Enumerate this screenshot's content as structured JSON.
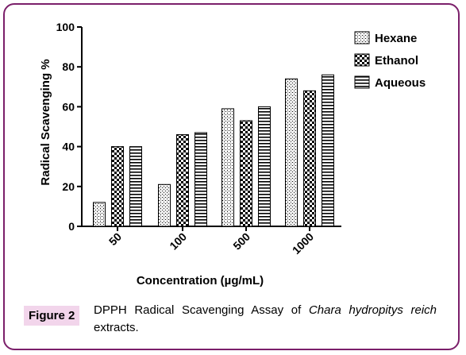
{
  "chart_data": {
    "type": "bar",
    "categories": [
      "50",
      "100",
      "500",
      "1000"
    ],
    "series": [
      {
        "name": "Hexane",
        "values": [
          12,
          21,
          59,
          74
        ]
      },
      {
        "name": "Ethanol",
        "values": [
          40,
          46,
          53,
          68
        ]
      },
      {
        "name": "Aqueous",
        "values": [
          40,
          47,
          60,
          76
        ]
      }
    ],
    "title": "",
    "xlabel": "Concentration (µg/mL)",
    "ylabel": "Radical Scavenging %",
    "ylim": [
      0,
      100
    ],
    "yticks": [
      "0",
      "20",
      "40",
      "60",
      "80",
      "100"
    ],
    "grid": false,
    "legend": "top-right"
  },
  "caption": {
    "label": "Figure 2",
    "text_before": "DPPH Radical Scavenging Assay of ",
    "text_italic": "Chara hydropitys reich",
    "text_after": " extracts."
  },
  "colors": {
    "frame": "#7b1f6a",
    "badge": "#f2d5eb"
  }
}
